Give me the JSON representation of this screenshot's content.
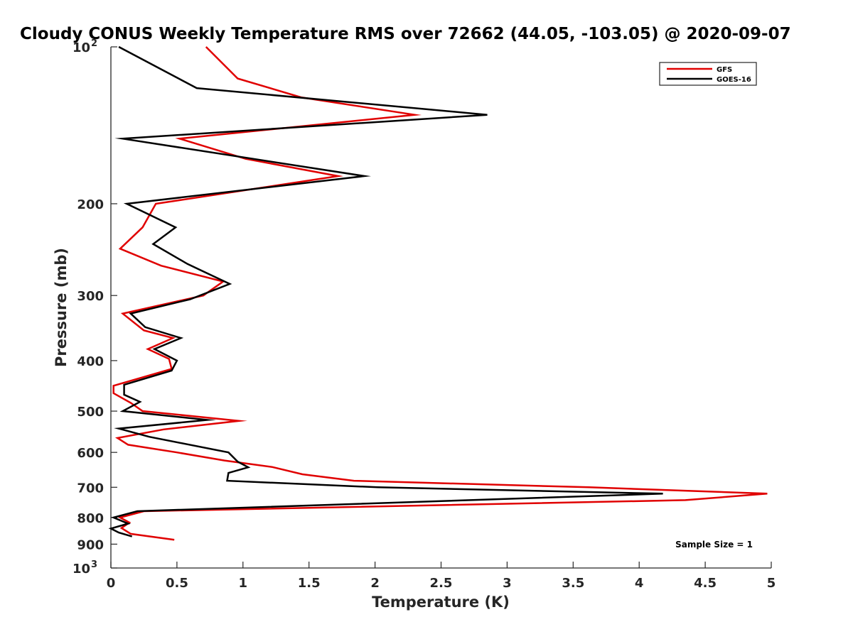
{
  "chart_data": {
    "type": "line",
    "title": "Cloudy CONUS Weekly Temperature RMS over 72662 (44.05, -103.05) @ 2020-09-07",
    "xlabel": "Temperature (K)",
    "ylabel": "Pressure (mb)",
    "xlim": [
      0,
      5
    ],
    "ylim": [
      100,
      1000
    ],
    "y_scale": "log",
    "y_reversed": true,
    "grid": false,
    "legend_position": "top-right",
    "x_ticks": [
      "0",
      "0.5",
      "1",
      "1.5",
      "2",
      "2.5",
      "3",
      "3.5",
      "4",
      "4.5",
      "5"
    ],
    "y_ticks": [
      {
        "value": 100,
        "base": "10",
        "exp": "2"
      },
      {
        "value": 200,
        "label": "200"
      },
      {
        "value": 300,
        "label": "300"
      },
      {
        "value": 400,
        "label": "400"
      },
      {
        "value": 500,
        "label": "500"
      },
      {
        "value": 600,
        "label": "600"
      },
      {
        "value": 700,
        "label": "700"
      },
      {
        "value": 800,
        "label": "800"
      },
      {
        "value": 900,
        "label": "900"
      },
      {
        "value": 1000,
        "base": "10",
        "exp": "3"
      }
    ],
    "annotation": "Sample Size = 1",
    "series": [
      {
        "name": "GFS",
        "color": "#e00000",
        "points": [
          [
            0.72,
            100
          ],
          [
            0.96,
            115
          ],
          [
            1.44,
            125
          ],
          [
            2.3,
            135
          ],
          [
            0.52,
            150
          ],
          [
            1.02,
            164
          ],
          [
            1.72,
            177
          ],
          [
            0.34,
            200
          ],
          [
            0.24,
            222
          ],
          [
            0.07,
            244
          ],
          [
            0.38,
            263
          ],
          [
            0.85,
            282
          ],
          [
            0.7,
            300
          ],
          [
            0.09,
            325
          ],
          [
            0.25,
            350
          ],
          [
            0.47,
            362
          ],
          [
            0.28,
            380
          ],
          [
            0.44,
            397
          ],
          [
            0.46,
            415
          ],
          [
            0.02,
            447
          ],
          [
            0.02,
            462
          ],
          [
            0.15,
            482
          ],
          [
            0.24,
            500
          ],
          [
            0.97,
            522
          ],
          [
            0.4,
            542
          ],
          [
            0.05,
            563
          ],
          [
            0.13,
            580
          ],
          [
            0.5,
            600
          ],
          [
            0.86,
            622
          ],
          [
            1.22,
            640
          ],
          [
            1.45,
            661
          ],
          [
            1.84,
            680
          ],
          [
            3.62,
            700
          ],
          [
            4.97,
            720
          ],
          [
            4.35,
            741
          ],
          [
            0.25,
            778
          ],
          [
            0.07,
            800
          ],
          [
            0.14,
            818
          ],
          [
            0.08,
            838
          ],
          [
            0.15,
            860
          ],
          [
            0.48,
            883
          ]
        ]
      },
      {
        "name": "GOES-16",
        "color": "#000000",
        "points": [
          [
            0.06,
            100
          ],
          [
            0.65,
            120
          ],
          [
            2.85,
            135
          ],
          [
            0.09,
            150
          ],
          [
            1.92,
            177
          ],
          [
            0.12,
            200
          ],
          [
            0.49,
            222
          ],
          [
            0.32,
            239
          ],
          [
            0.58,
            261
          ],
          [
            0.9,
            285
          ],
          [
            0.6,
            305
          ],
          [
            0.15,
            325
          ],
          [
            0.26,
            345
          ],
          [
            0.53,
            362
          ],
          [
            0.33,
            380
          ],
          [
            0.5,
            400
          ],
          [
            0.46,
            418
          ],
          [
            0.1,
            445
          ],
          [
            0.1,
            465
          ],
          [
            0.22,
            480
          ],
          [
            0.09,
            500
          ],
          [
            0.73,
            520
          ],
          [
            0.06,
            540
          ],
          [
            0.29,
            560
          ],
          [
            0.89,
            600
          ],
          [
            0.96,
            625
          ],
          [
            1.04,
            641
          ],
          [
            0.89,
            657
          ],
          [
            0.88,
            680
          ],
          [
            2.02,
            700
          ],
          [
            4.18,
            720
          ],
          [
            0.2,
            778
          ],
          [
            0.02,
            800
          ],
          [
            0.13,
            822
          ],
          [
            0.0,
            840
          ],
          [
            0.06,
            855
          ],
          [
            0.16,
            870
          ]
        ]
      }
    ]
  }
}
